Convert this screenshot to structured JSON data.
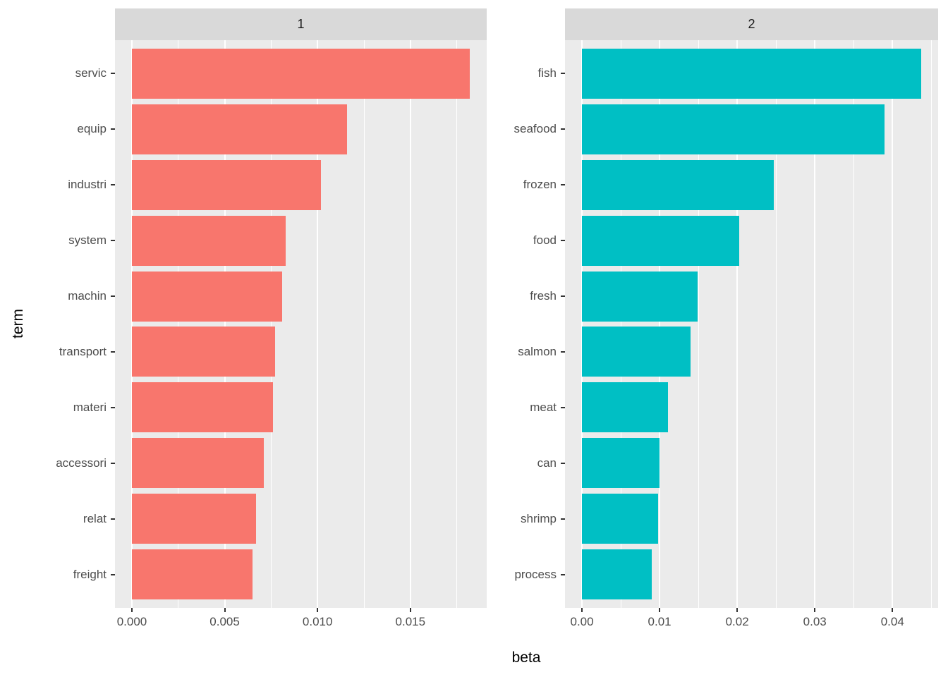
{
  "chart_data": {
    "type": "bar",
    "orientation": "horizontal",
    "title": "",
    "xlabel": "beta",
    "ylabel": "term",
    "grid": true,
    "legend": false,
    "panel_background": "#EBEBEB",
    "strip_background": "#D9D9D9",
    "gridline_color": "#FFFFFF",
    "axis_text_color": "#4D4D4D",
    "facets": [
      {
        "strip_label": "1",
        "fill": "#F8766D",
        "categories": [
          "servic",
          "equip",
          "industri",
          "system",
          "machin",
          "transport",
          "materi",
          "accessori",
          "relat",
          "freight"
        ],
        "values": [
          0.0182,
          0.0116,
          0.0102,
          0.0083,
          0.0081,
          0.0077,
          0.0076,
          0.0071,
          0.0067,
          0.0065
        ],
        "x_ticks": [
          0.0,
          0.005,
          0.01,
          0.015
        ],
        "x_tick_labels": [
          "0.000",
          "0.005",
          "0.010",
          "0.015"
        ],
        "xlim": [
          -0.00091,
          0.01911
        ]
      },
      {
        "strip_label": "2",
        "fill": "#00BFC4",
        "categories": [
          "fish",
          "seafood",
          "frozen",
          "food",
          "fresh",
          "salmon",
          "meat",
          "can",
          "shrimp",
          "process"
        ],
        "values": [
          0.0437,
          0.039,
          0.0247,
          0.0203,
          0.0149,
          0.014,
          0.0111,
          0.01,
          0.0098,
          0.009
        ],
        "x_ticks": [
          0.0,
          0.01,
          0.02,
          0.03,
          0.04
        ],
        "x_tick_labels": [
          "0.00",
          "0.01",
          "0.02",
          "0.03",
          "0.04"
        ],
        "xlim": [
          -0.002185,
          0.045885
        ]
      }
    ]
  }
}
